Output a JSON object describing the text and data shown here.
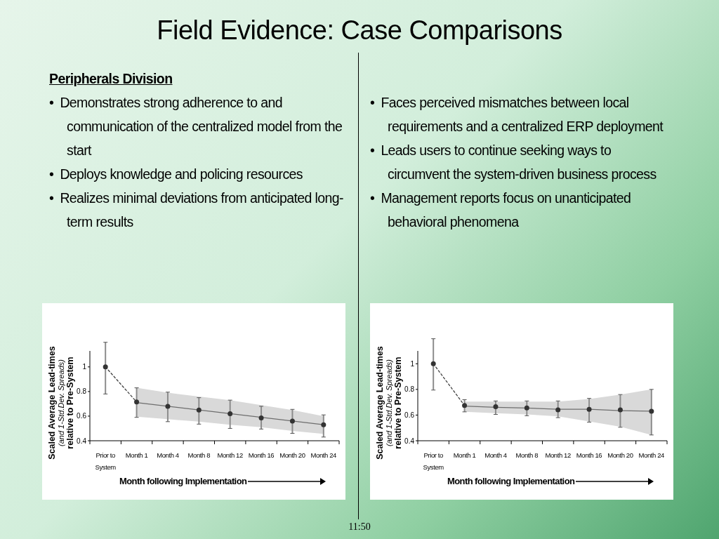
{
  "chart_data": [
    {
      "type": "other",
      "title": "Field Evidence: Case Comparisons",
      "annotations": [
        "11:50"
      ]
    },
    {
      "type": "other",
      "title": "Peripherals Division",
      "annotations": [
        "•\tDemonstrates strong adherence to and communication of the centralized model from the start",
        "•\tDeploys knowledge and policing resources",
        "•\tRealizes minimal deviations from anticipated long-term results"
      ]
    },
    {
      "type": "other",
      "annotations": [
        "•\tFaces perceived mismatches between local requirements and a centralized ERP deployment",
        "•\tLeads users to continue seeking ways to circumvent the system-driven business process",
        "•\tManagement reports focus on unanticipated behavioral phenomena"
      ]
    },
    {
      "type": "line",
      "ylabel": "Scaled Average Lead-times\n(and 1-Std.Dev. Spreads)\nrelative to Pre-System",
      "xlabel": "Month following Implementation",
      "categories": [
        "Prior to System",
        "Month 1",
        "Month 4",
        "Month 8",
        "Month 12",
        "Month 16",
        "Month 20",
        "Month 24"
      ],
      "ylim": [
        0.4,
        1.13
      ],
      "yticks": [
        0.4,
        0.6,
        0.8,
        1
      ],
      "series": [
        {
          "type": "line",
          "color": "#6e6e6e",
          "values": [
            null,
            0.71,
            0.68,
            0.65,
            0.62,
            0.59,
            0.56,
            0.53
          ],
          "lower": [
            null,
            0.595,
            0.575,
            0.555,
            0.53,
            0.51,
            0.48,
            0.455
          ],
          "upper": [
            null,
            0.83,
            0.79,
            0.76,
            0.73,
            0.69,
            0.65,
            0.6
          ]
        },
        {
          "type": "line",
          "line_style": "dashed",
          "color": "#404040",
          "values": [
            1.0,
            0.715,
            null,
            null,
            null,
            null,
            null,
            null
          ]
        },
        {
          "type": "scatter",
          "marker": "circle",
          "color": "#333333",
          "values": [
            1.0,
            0.715,
            0.68,
            0.65,
            0.62,
            0.585,
            0.56,
            0.53
          ],
          "errors": [
            [
              0.78,
              1.2
            ],
            [
              0.59,
              0.83
            ],
            [
              0.555,
              0.795
            ],
            [
              0.535,
              0.75
            ],
            [
              0.5,
              0.73
            ],
            [
              0.495,
              0.68
            ],
            [
              0.46,
              0.655
            ],
            [
              0.43,
              0.61
            ]
          ]
        }
      ]
    },
    {
      "type": "line",
      "ylabel": "Scaled Average Lead-times\n(and 1-Std.Dev. Spreads)\nrelative to Pre-System",
      "xlabel": "Month following Implementation",
      "categories": [
        "Prior to System",
        "Month 1",
        "Month 4",
        "Month 8",
        "Month 12",
        "Month 16",
        "Month 20",
        "Month 24"
      ],
      "ylim": [
        0.4,
        1.1
      ],
      "yticks": [
        0.4,
        0.6,
        0.8,
        1
      ],
      "series": [
        {
          "type": "line",
          "color": "#6e6e6e",
          "values": [
            null,
            0.67,
            0.66,
            0.655,
            0.645,
            0.645,
            0.635,
            0.63
          ],
          "lower": [
            null,
            0.625,
            0.615,
            0.605,
            0.59,
            0.55,
            0.51,
            0.445
          ],
          "upper": [
            null,
            0.705,
            0.705,
            0.705,
            0.705,
            0.725,
            0.76,
            0.8
          ]
        },
        {
          "type": "line",
          "line_style": "dashed",
          "color": "#404040",
          "values": [
            1.0,
            0.675,
            null,
            null,
            null,
            null,
            null,
            null
          ]
        },
        {
          "type": "scatter",
          "marker": "circle",
          "color": "#333333",
          "values": [
            1.0,
            0.675,
            0.665,
            0.655,
            0.64,
            0.645,
            0.64,
            0.63
          ],
          "errors": [
            [
              0.795,
              1.195
            ],
            [
              0.625,
              0.72
            ],
            [
              0.605,
              0.71
            ],
            [
              0.595,
              0.71
            ],
            [
              0.58,
              0.71
            ],
            [
              0.545,
              0.73
            ],
            [
              0.505,
              0.76
            ],
            [
              0.445,
              0.8
            ]
          ]
        }
      ]
    }
  ]
}
